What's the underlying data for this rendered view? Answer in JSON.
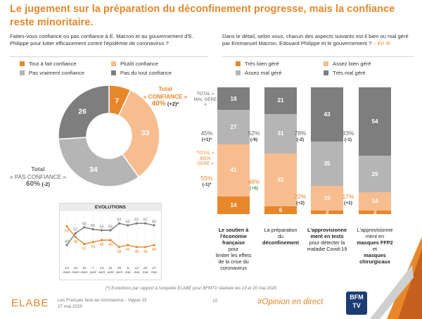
{
  "header": {
    "title": "Le jugement sur la préparation du déconfinement progresse, mais la confiance reste minoritaire."
  },
  "left": {
    "question": "Faites-vous confiance ou pas confiance à E. Macron et au gouvernement d'E. Philippe pour lutter efficacement contre l'épidémie de coronavirus ?",
    "legend": [
      {
        "label": "Tout à fait confiance",
        "color": "#e8872a"
      },
      {
        "label": "Plutôt confiance",
        "color": "#f8bd8e"
      },
      {
        "label": "Pas vraiment confiance",
        "color": "#b5b5b5"
      },
      {
        "label": "Pas du tout confiance",
        "color": "#7e7e7e"
      }
    ],
    "total_conf": {
      "line1": "Total",
      "line2": "« CONFIANCE »",
      "value": "40%",
      "change": "(+2)*"
    },
    "total_pas": {
      "line1": "Total",
      "line2": "« PAS CONFIANCE »",
      "value": "60%",
      "change": "(-2)"
    }
  },
  "right": {
    "question": "Dans le détail, selon vous, chacun des aspects suivants est-il bien ou mal géré par Emmanuel Macron, Edouard Philippe et le gouvernement ?",
    "unit": "– En %",
    "legend": [
      {
        "label": "Très bien géré",
        "color": "#e8872a"
      },
      {
        "label": "Assez bien géré",
        "color": "#f8bd8e"
      },
      {
        "label": "Assez mal géré",
        "color": "#b5b5b5"
      },
      {
        "label": "Très mal géré",
        "color": "#7e7e7e"
      }
    ],
    "label_mal": "TOTAL « MAL GERE »",
    "label_bien": "TOTAL « BIEN GERE »"
  },
  "evolutions": {
    "title": "EVOLUTIONS",
    "dates": [
      "13 mars",
      "24 mars",
      "31 mars",
      "7 avril",
      "14 avril",
      "21 avril",
      "29 avril",
      "5 mai",
      "13 mai",
      "20 mai",
      "27 mai"
    ]
  },
  "footer": {
    "note": "(*) Evolutions par rapport à l'enquête ELABE pour BFMTV réalisée les 19 et 20 mai 2020",
    "brand": "ELABE",
    "study_line1": "Les Français face au coronavirus - Vague 15",
    "study_line2": "27 mai 2020",
    "page": "10",
    "hashtag": "#Opinion en direct",
    "tv_logo": "BFM TV"
  },
  "chart_data": [
    {
      "type": "pie",
      "title": "Confiance envers E. Macron et le gouvernement d'E. Philippe",
      "categories": [
        "Tout à fait confiance",
        "Plutôt confiance",
        "Pas vraiment confiance",
        "Pas du tout confiance"
      ],
      "values": [
        7,
        33,
        34,
        26
      ],
      "colors": [
        "#e8872a",
        "#f8bd8e",
        "#b5b5b5",
        "#7e7e7e"
      ],
      "donut": true
    },
    {
      "type": "bar",
      "stacked": true,
      "categories": [
        "Le soutien à l'économie française pour limiter les effets de la crise du coronavirus",
        "La préparation du déconfinement",
        "L'approvisionnement en tests pour détecter la maladie Covid-19",
        "L'approvisionnement en masques FFP2 et masques chirurgicaux"
      ],
      "category_lines": [
        [
          {
            "t": "Le soutien à",
            "b": true
          },
          {
            "t": "l'économie",
            "b": true
          },
          {
            "t": "française",
            "b": true
          },
          {
            "t": "pour",
            "b": false
          },
          {
            "t": "limiter les effets",
            "b": false
          },
          {
            "t": "de la crise du",
            "b": false
          },
          {
            "t": "coronavirus",
            "b": false
          }
        ],
        [
          {
            "t": "La préparation",
            "b": false
          },
          {
            "t": "du",
            "b": false
          },
          {
            "t": "déconfinement",
            "b": true
          }
        ],
        [
          {
            "t": "L'approvisionne",
            "b": true
          },
          {
            "t": "ment en tests",
            "b": true
          },
          {
            "t": "pour détecter la",
            "b": false
          },
          {
            "t": "maladie Covid-19",
            "b": false
          }
        ],
        [
          {
            "t": "L'approvisionne",
            "b": false
          },
          {
            "t": "ment en",
            "b": false
          },
          {
            "t": "masques FFP2",
            "b": true
          },
          {
            "t": "et",
            "b": false
          },
          {
            "t": "masques",
            "b": true
          },
          {
            "t": "chirurgicaux",
            "b": true
          }
        ]
      ],
      "series": [
        {
          "name": "Très bien géré",
          "values": [
            14,
            6,
            3,
            3
          ],
          "color": "#e8872a"
        },
        {
          "name": "Assez bien géré",
          "values": [
            41,
            42,
            19,
            14
          ],
          "color": "#f8bd8e"
        },
        {
          "name": "Assez mal géré",
          "values": [
            27,
            31,
            35,
            29
          ],
          "color": "#b5b5b5"
        },
        {
          "name": "Très mal géré",
          "values": [
            18,
            21,
            43,
            54
          ],
          "color": "#7e7e7e"
        }
      ],
      "total_mal": [
        {
          "value": "45%",
          "change": "(+1)*"
        },
        {
          "value": "52%",
          "change": "(-6)"
        },
        {
          "value": "78%",
          "change": "(-2)"
        },
        {
          "value": "83%",
          "change": "(-1)"
        }
      ],
      "total_bien": [
        {
          "value": "55%",
          "change": "(-1)*"
        },
        {
          "value": "48%",
          "change": "(+6)"
        },
        {
          "value": "22%",
          "change": "(+2)"
        },
        {
          "value": "17%",
          "change": "(+1)"
        }
      ]
    },
    {
      "type": "line",
      "title": "EVOLUTIONS",
      "x": [
        "13 mars",
        "24 mars",
        "31 mars",
        "7 avril",
        "14 avril",
        "21 avril",
        "29 avril",
        "5 mai",
        "13 mai",
        "20 mai",
        "27 mai"
      ],
      "series": [
        {
          "name": "Confiance",
          "values": [
            59,
            48,
            41,
            43,
            45,
            45,
            38,
            40,
            38,
            38,
            40
          ],
          "color": "#e8872a"
        },
        {
          "name": "Pas confiance",
          "values": [
            40,
            52,
            58,
            56,
            55,
            55,
            62,
            60,
            62,
            62,
            60
          ],
          "color": "#777777"
        }
      ],
      "ylim": [
        30,
        70
      ]
    }
  ]
}
